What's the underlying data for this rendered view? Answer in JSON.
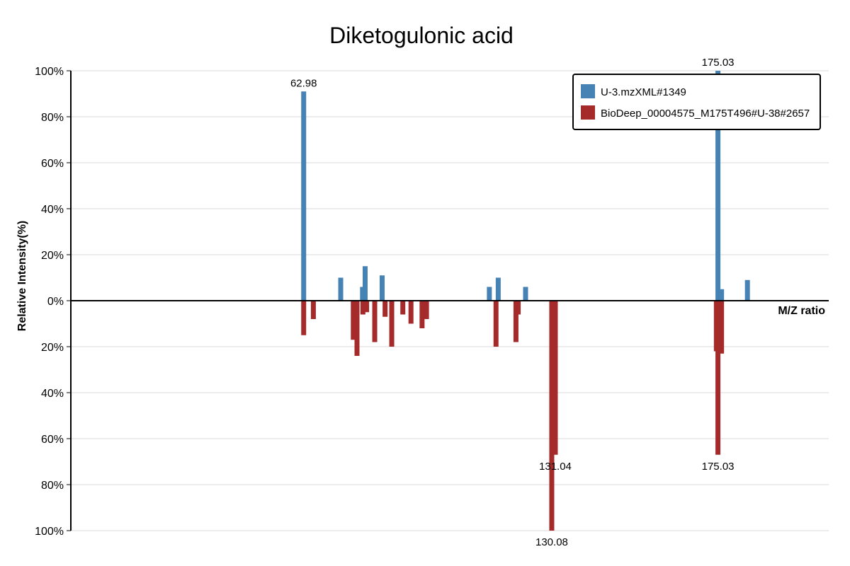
{
  "chart_data": {
    "type": "bar",
    "title": "Diketogulonic acid",
    "xlabel": "M/Z ratio",
    "ylabel": "Relative Intensity(%)",
    "ylim": [
      -100,
      100
    ],
    "xlim": [
      0,
      205
    ],
    "grid": true,
    "legend_position": "top-right",
    "y_ticks": [
      "100%",
      "80%",
      "60%",
      "40%",
      "20%",
      "0%",
      "20%",
      "40%",
      "60%",
      "80%",
      "100%"
    ],
    "y_tick_values": [
      100,
      80,
      60,
      40,
      20,
      0,
      -20,
      -40,
      -60,
      -80,
      -100
    ],
    "series": [
      {
        "name": "U-3.mzXML#1349",
        "color": "#4682b4",
        "direction": "up",
        "points": [
          {
            "mz": 62.98,
            "intensity": 91
          },
          {
            "mz": 73.0,
            "intensity": 10
          },
          {
            "mz": 78.9,
            "intensity": 6
          },
          {
            "mz": 79.6,
            "intensity": 15
          },
          {
            "mz": 84.2,
            "intensity": 11
          },
          {
            "mz": 113.2,
            "intensity": 6
          },
          {
            "mz": 115.6,
            "intensity": 10
          },
          {
            "mz": 123.0,
            "intensity": 6
          },
          {
            "mz": 175.03,
            "intensity": 100
          },
          {
            "mz": 176.0,
            "intensity": 5
          },
          {
            "mz": 183.0,
            "intensity": 9
          }
        ]
      },
      {
        "name": "BioDeep_00004575_M175T496#U-38#2657",
        "color": "#a52a2a",
        "direction": "down",
        "points": [
          {
            "mz": 62.98,
            "intensity": 15
          },
          {
            "mz": 65.6,
            "intensity": 8
          },
          {
            "mz": 76.4,
            "intensity": 17
          },
          {
            "mz": 77.4,
            "intensity": 24
          },
          {
            "mz": 79.0,
            "intensity": 6
          },
          {
            "mz": 80.0,
            "intensity": 5
          },
          {
            "mz": 82.2,
            "intensity": 18
          },
          {
            "mz": 85.0,
            "intensity": 7
          },
          {
            "mz": 86.8,
            "intensity": 20
          },
          {
            "mz": 89.8,
            "intensity": 6
          },
          {
            "mz": 92.0,
            "intensity": 10
          },
          {
            "mz": 95.0,
            "intensity": 12
          },
          {
            "mz": 96.2,
            "intensity": 8
          },
          {
            "mz": 130.08,
            "intensity": 100
          },
          {
            "mz": 131.04,
            "intensity": 67
          },
          {
            "mz": 115.0,
            "intensity": 20
          },
          {
            "mz": 120.4,
            "intensity": 18
          },
          {
            "mz": 121.0,
            "intensity": 6
          },
          {
            "mz": 174.6,
            "intensity": 22
          },
          {
            "mz": 175.03,
            "intensity": 67
          },
          {
            "mz": 176.0,
            "intensity": 23
          }
        ]
      }
    ],
    "annotations": [
      {
        "text": "62.98",
        "series": 0,
        "mz": 62.98
      },
      {
        "text": "175.03",
        "series": 0,
        "mz": 175.03
      },
      {
        "text": "131.04",
        "series": 1,
        "mz": 131.04
      },
      {
        "text": "175.03",
        "series": 1,
        "mz": 175.03
      },
      {
        "text": "130.08",
        "series": 1,
        "mz": 130.08
      }
    ]
  }
}
